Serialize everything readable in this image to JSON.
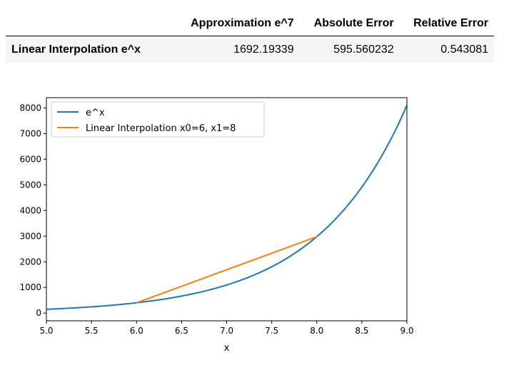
{
  "table": {
    "columns": [
      "Approximation e^7",
      "Absolute Error",
      "Relative Error"
    ],
    "rows": [
      {
        "label": "Linear Interpolation e^x",
        "values": [
          "1692.19339",
          "595.560232",
          "0.543081"
        ]
      }
    ]
  },
  "chart_data": {
    "type": "line",
    "xlabel": "x",
    "ylabel": "",
    "xlim": [
      5.0,
      9.0
    ],
    "ylim": [
      -300,
      8400
    ],
    "x_ticks": [
      "5.0",
      "5.5",
      "6.0",
      "6.5",
      "7.0",
      "7.5",
      "8.0",
      "8.5",
      "9.0"
    ],
    "y_ticks": [
      "0",
      "1000",
      "2000",
      "3000",
      "4000",
      "5000",
      "6000",
      "7000",
      "8000"
    ],
    "legend_position": "upper-left",
    "grid": false,
    "series": [
      {
        "name": "e^x",
        "color": "#1f77b4",
        "function": "exp",
        "x_range": [
          5.0,
          9.0
        ]
      },
      {
        "name": "Linear Interpolation x0=6, x1=8",
        "color": "#ff7f0e",
        "x": [
          6.0,
          8.0
        ],
        "y": [
          403.43,
          2980.96
        ]
      }
    ]
  }
}
